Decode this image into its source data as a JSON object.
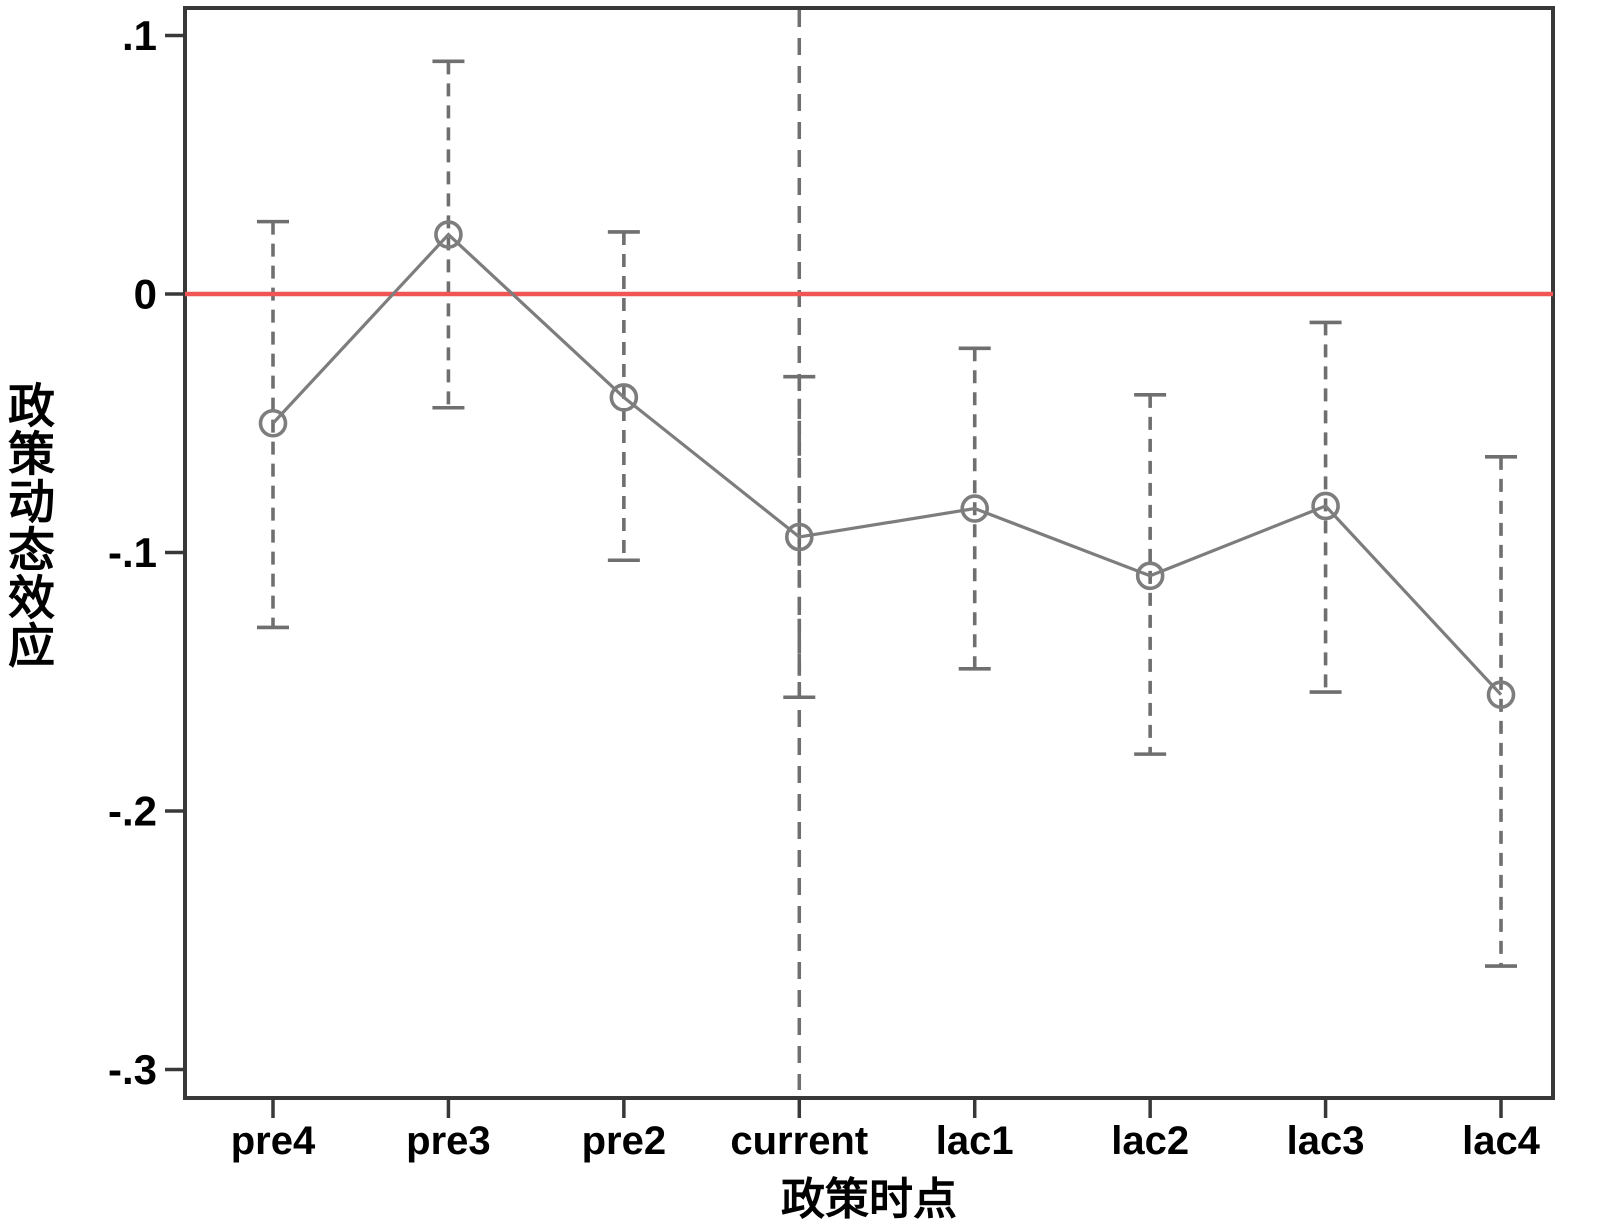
{
  "figure": {
    "background": "#ffffff"
  },
  "chart_data": {
    "type": "line",
    "title": "",
    "xlabel": "政策时点",
    "ylabel": "政策动态效应",
    "categories": [
      "pre4",
      "pre3",
      "pre2",
      "current",
      "lac1",
      "lac2",
      "lac3",
      "lac4"
    ],
    "series": [
      {
        "name": "政策动态效应",
        "marker": "open-circle",
        "values": [
          -0.05,
          0.023,
          -0.04,
          -0.094,
          -0.083,
          -0.109,
          -0.082,
          -0.155
        ],
        "ci_low": [
          -0.129,
          -0.044,
          -0.103,
          -0.156,
          -0.145,
          -0.178,
          -0.154,
          -0.26
        ],
        "ci_high": [
          0.028,
          0.09,
          0.024,
          -0.032,
          -0.021,
          -0.039,
          -0.011,
          -0.063
        ]
      }
    ],
    "yticks": {
      "values": [
        0.1,
        0,
        -0.1,
        -0.2,
        -0.3
      ],
      "labels": [
        ".1",
        "0",
        "-.1",
        "-.2",
        "-.3"
      ]
    },
    "ylim": [
      -0.311,
      0.111
    ],
    "reference_line": {
      "y": 0,
      "color": "#f15454",
      "style": "solid"
    },
    "vertical_line": {
      "x_category": "current",
      "color": "#6f6f6f",
      "style": "dashed"
    },
    "grid": false,
    "legend": false,
    "colors": {
      "series": "#7d7d7d",
      "error_bar": "#6f6f6f",
      "axis": "#383838",
      "text": "#000000"
    }
  }
}
